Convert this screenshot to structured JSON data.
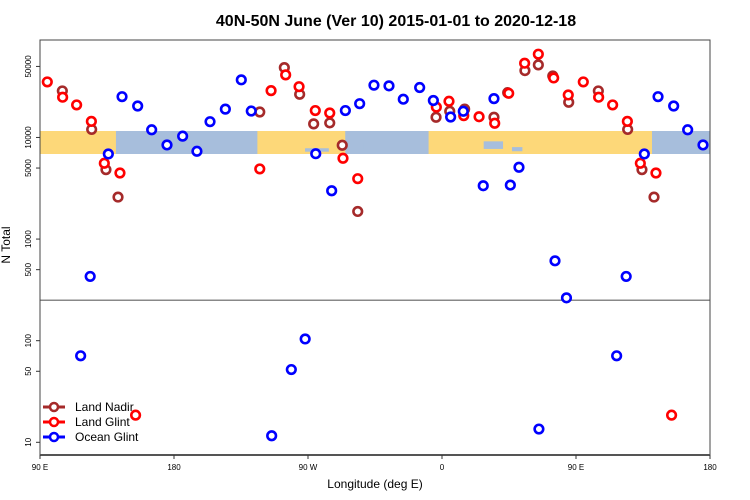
{
  "chart_data": {
    "type": "scatter",
    "title": "40N-50N June (Ver 10)   2015-01-01 to 2020-12-18",
    "xlabel": "Longitude (deg E)",
    "ylabel": "N Total",
    "x_scale": "longitude, wrapped from 90 E through 180 to 180 (90 E to 180 shown twice)",
    "y_scale": "log",
    "ylim": [
      7.5,
      91000
    ],
    "x_ticks": [
      "90 E",
      "180",
      "90 W",
      "0",
      "90 E",
      "180"
    ],
    "y_ticks": [
      "10",
      "50",
      "100",
      "500",
      "1000",
      "5000",
      "10000",
      "50000"
    ],
    "y_tick_values": [
      10,
      50,
      100,
      500,
      1000,
      5000,
      10000,
      50000
    ],
    "reference_line_y": 250,
    "background": "land/ocean map strip for 40N-50N",
    "legend_position": "bottom-left",
    "grid": false,
    "colors": {
      "land": "#FDD879",
      "ocean": "#A7BEDC"
    },
    "series": [
      {
        "name": "Land Nadir",
        "color": "#A52A2A",
        "points": [
          [
            -122.4,
            17800
          ],
          [
            -105.9,
            48700
          ],
          [
            -95.6,
            26600
          ],
          [
            -86.2,
            13600
          ],
          [
            -75.4,
            13900
          ],
          [
            -67.0,
            8380
          ],
          [
            -56.6,
            1870
          ],
          [
            -4.0,
            15800
          ],
          [
            5.2,
            18100
          ],
          [
            15.2,
            19000
          ],
          [
            34.9,
            15800
          ],
          [
            44.1,
            27600
          ],
          [
            55.7,
            45500
          ],
          [
            64.7,
            51800
          ],
          [
            74.4,
            40300
          ],
          [
            85.1,
            22200
          ],
          [
            105.0,
            28700
          ],
          [
            124.7,
            12000
          ],
          [
            134.3,
            4820
          ],
          [
            142.4,
            2590
          ]
        ]
      },
      {
        "name": "Land Glint",
        "color": "#FF0000",
        "points": [
          [
            -122.4,
            4900
          ],
          [
            -114.8,
            28900
          ],
          [
            -105.0,
            41300
          ],
          [
            -96.0,
            31600
          ],
          [
            -85.1,
            18400
          ],
          [
            -75.4,
            17400
          ],
          [
            -66.5,
            6240
          ],
          [
            -56.6,
            3930
          ],
          [
            -3.8,
            19900
          ],
          [
            4.7,
            22700
          ],
          [
            14.6,
            16400
          ],
          [
            24.9,
            16000
          ],
          [
            35.4,
            13800
          ],
          [
            44.8,
            27200
          ],
          [
            55.5,
            53800
          ],
          [
            64.7,
            66000
          ],
          [
            75.0,
            38500
          ],
          [
            84.8,
            26200
          ],
          [
            94.9,
            35200
          ],
          [
            105.2,
            24900
          ],
          [
            114.6,
            20900
          ],
          [
            124.5,
            14400
          ],
          [
            133.2,
            5570
          ],
          [
            143.7,
            4470
          ],
          [
            154.2,
            18.5
          ]
        ]
      },
      {
        "name": "Ocean Glint",
        "color": "#0000FF",
        "points": [
          [
            -174.2,
            10300
          ],
          [
            -164.6,
            7310
          ],
          [
            -155.8,
            14300
          ],
          [
            -145.5,
            19000
          ],
          [
            -134.8,
            36900
          ],
          [
            -128.1,
            18200
          ],
          [
            -114.4,
            11.6
          ],
          [
            -101.2,
            52
          ],
          [
            -91.9,
            104
          ],
          [
            -84.8,
            6920
          ],
          [
            -74.1,
            2990
          ],
          [
            -64.9,
            18400
          ],
          [
            -55.3,
            21500
          ],
          [
            -45.7,
            32700
          ],
          [
            -35.6,
            32200
          ],
          [
            -26.0,
            23800
          ],
          [
            -15.0,
            31000
          ],
          [
            -5.8,
            23100
          ],
          [
            5.8,
            15900
          ],
          [
            14.3,
            18100
          ],
          [
            27.7,
            3350
          ],
          [
            34.9,
            24100
          ],
          [
            45.9,
            3400
          ],
          [
            51.7,
            5090
          ],
          [
            65.1,
            13.5
          ],
          [
            75.9,
            611
          ],
          [
            83.6,
            264
          ],
          [
            117.3,
            71
          ],
          [
            123.7,
            429
          ],
          [
            135.9,
            6880
          ],
          [
            145.1,
            25200
          ],
          [
            155.6,
            20400
          ],
          [
            165.0,
            11900
          ],
          [
            175.3,
            8440
          ]
        ]
      }
    ]
  }
}
